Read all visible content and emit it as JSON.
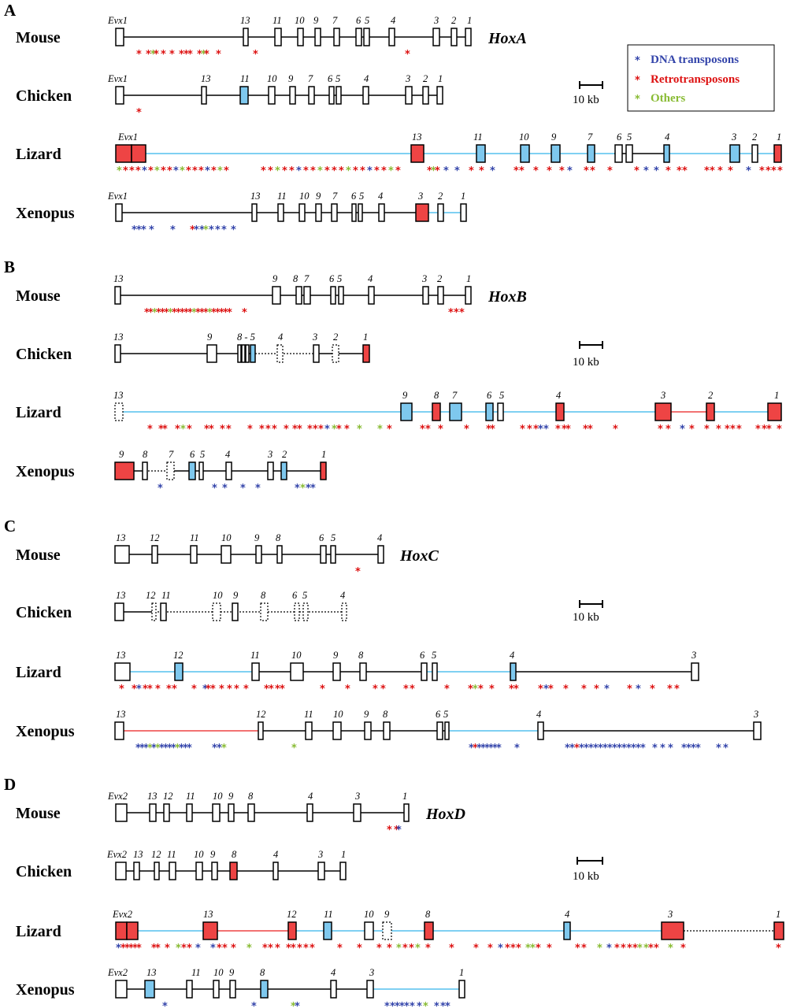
{
  "colors": {
    "dna": "#3344aa",
    "retro": "#dd1111",
    "others": "#88bb33",
    "blue_fill": "#7ec8ee",
    "red_fill": "#ee4444",
    "light_line": "#55c0ee",
    "red_line": "#ee4444"
  },
  "legend": {
    "dna": "DNA transposons",
    "retro": "Retrotransposons",
    "others": "Others"
  },
  "scale_label": "10 kb",
  "panels": [
    {
      "letter": "A",
      "cluster": "HoxA",
      "rows": [
        {
          "species": "Mouse",
          "genes": [
            {
              "label": "Evx1"
            },
            {
              "label": "13"
            },
            {
              "label": "11"
            },
            {
              "label": "10"
            },
            {
              "label": "9"
            },
            {
              "label": "7"
            },
            {
              "label": "6"
            },
            {
              "label": "5"
            },
            {
              "label": "4"
            },
            {
              "label": "3"
            },
            {
              "label": "2"
            },
            {
              "label": "1"
            }
          ]
        },
        {
          "species": "Chicken",
          "genes": [
            {
              "label": "Evx1"
            },
            {
              "label": "13"
            },
            {
              "label": "11"
            },
            {
              "label": "10"
            },
            {
              "label": "9"
            },
            {
              "label": "7"
            },
            {
              "label": "6"
            },
            {
              "label": "5"
            },
            {
              "label": "4"
            },
            {
              "label": "3"
            },
            {
              "label": "2"
            },
            {
              "label": "1"
            }
          ]
        },
        {
          "species": "Lizard",
          "genes": [
            {
              "label": "Evx1"
            },
            {
              "label": "13"
            },
            {
              "label": "11"
            },
            {
              "label": "10"
            },
            {
              "label": "9"
            },
            {
              "label": "7"
            },
            {
              "label": "6"
            },
            {
              "label": "5"
            },
            {
              "label": "4"
            },
            {
              "label": "3"
            },
            {
              "label": "2"
            },
            {
              "label": "1"
            }
          ]
        },
        {
          "species": "Xenopus",
          "genes": [
            {
              "label": "Evx1"
            },
            {
              "label": "13"
            },
            {
              "label": "11"
            },
            {
              "label": "10"
            },
            {
              "label": "9"
            },
            {
              "label": "7"
            },
            {
              "label": "6"
            },
            {
              "label": "5"
            },
            {
              "label": "4"
            },
            {
              "label": "3"
            },
            {
              "label": "2"
            },
            {
              "label": "1"
            }
          ]
        }
      ]
    },
    {
      "letter": "B",
      "cluster": "HoxB",
      "rows": [
        {
          "species": "Mouse",
          "genes": [
            {
              "label": "13"
            },
            {
              "label": "9"
            },
            {
              "label": "8"
            },
            {
              "label": "7"
            },
            {
              "label": "6"
            },
            {
              "label": "5"
            },
            {
              "label": "4"
            },
            {
              "label": "3"
            },
            {
              "label": "2"
            },
            {
              "label": "1"
            }
          ]
        },
        {
          "species": "Chicken",
          "genes": [
            {
              "label": "13"
            },
            {
              "label": "9"
            },
            {
              "label": "8 - 5"
            },
            {
              "label": "4"
            },
            {
              "label": "3"
            },
            {
              "label": "2"
            },
            {
              "label": "1"
            }
          ]
        },
        {
          "species": "Lizard",
          "genes": [
            {
              "label": "13"
            },
            {
              "label": "9"
            },
            {
              "label": "8"
            },
            {
              "label": "7"
            },
            {
              "label": "6"
            },
            {
              "label": "5"
            },
            {
              "label": "4"
            },
            {
              "label": "3"
            },
            {
              "label": "2"
            },
            {
              "label": "1"
            }
          ]
        },
        {
          "species": "Xenopus",
          "genes": [
            {
              "label": "9"
            },
            {
              "label": "8"
            },
            {
              "label": "7"
            },
            {
              "label": "6"
            },
            {
              "label": "5"
            },
            {
              "label": "4"
            },
            {
              "label": "3"
            },
            {
              "label": "2"
            },
            {
              "label": "1"
            }
          ]
        }
      ]
    },
    {
      "letter": "C",
      "cluster": "HoxC",
      "rows": [
        {
          "species": "Mouse",
          "genes": [
            {
              "label": "13"
            },
            {
              "label": "12"
            },
            {
              "label": "11"
            },
            {
              "label": "10"
            },
            {
              "label": "9"
            },
            {
              "label": "8"
            },
            {
              "label": "6"
            },
            {
              "label": "5"
            },
            {
              "label": "4"
            }
          ]
        },
        {
          "species": "Chicken",
          "genes": [
            {
              "label": "13"
            },
            {
              "label": "12"
            },
            {
              "label": "11"
            },
            {
              "label": "10"
            },
            {
              "label": "9"
            },
            {
              "label": "8"
            },
            {
              "label": "6"
            },
            {
              "label": "5"
            },
            {
              "label": "4"
            }
          ]
        },
        {
          "species": "Lizard",
          "genes": [
            {
              "label": "13"
            },
            {
              "label": "12"
            },
            {
              "label": "11"
            },
            {
              "label": "10"
            },
            {
              "label": "9"
            },
            {
              "label": "8"
            },
            {
              "label": "6"
            },
            {
              "label": "5"
            },
            {
              "label": "4"
            },
            {
              "label": "3"
            }
          ]
        },
        {
          "species": "Xenopus",
          "genes": [
            {
              "label": "13"
            },
            {
              "label": "12"
            },
            {
              "label": "11"
            },
            {
              "label": "10"
            },
            {
              "label": "9"
            },
            {
              "label": "8"
            },
            {
              "label": "6"
            },
            {
              "label": "5"
            },
            {
              "label": "4"
            },
            {
              "label": "3"
            }
          ]
        }
      ]
    },
    {
      "letter": "D",
      "cluster": "HoxD",
      "rows": [
        {
          "species": "Mouse",
          "genes": [
            {
              "label": "Evx2"
            },
            {
              "label": "13"
            },
            {
              "label": "12"
            },
            {
              "label": "11"
            },
            {
              "label": "10"
            },
            {
              "label": "9"
            },
            {
              "label": "8"
            },
            {
              "label": "4"
            },
            {
              "label": "3"
            },
            {
              "label": "1"
            }
          ]
        },
        {
          "species": "Chicken",
          "genes": [
            {
              "label": "Evx2"
            },
            {
              "label": "13"
            },
            {
              "label": "12"
            },
            {
              "label": "11"
            },
            {
              "label": "10"
            },
            {
              "label": "9"
            },
            {
              "label": "8"
            },
            {
              "label": "4"
            },
            {
              "label": "3"
            },
            {
              "label": "1"
            }
          ]
        },
        {
          "species": "Lizard",
          "genes": [
            {
              "label": "Evx2"
            },
            {
              "label": "13"
            },
            {
              "label": "12"
            },
            {
              "label": "11"
            },
            {
              "label": "10"
            },
            {
              "label": "9"
            },
            {
              "label": "8"
            },
            {
              "label": "4"
            },
            {
              "label": "3"
            },
            {
              "label": "1"
            }
          ]
        },
        {
          "species": "Xenopus",
          "genes": [
            {
              "label": "Evx2"
            },
            {
              "label": "13"
            },
            {
              "label": "11"
            },
            {
              "label": "10"
            },
            {
              "label": "9"
            },
            {
              "label": "8"
            },
            {
              "label": "4"
            },
            {
              "label": "3"
            },
            {
              "label": "1"
            }
          ]
        }
      ]
    }
  ]
}
